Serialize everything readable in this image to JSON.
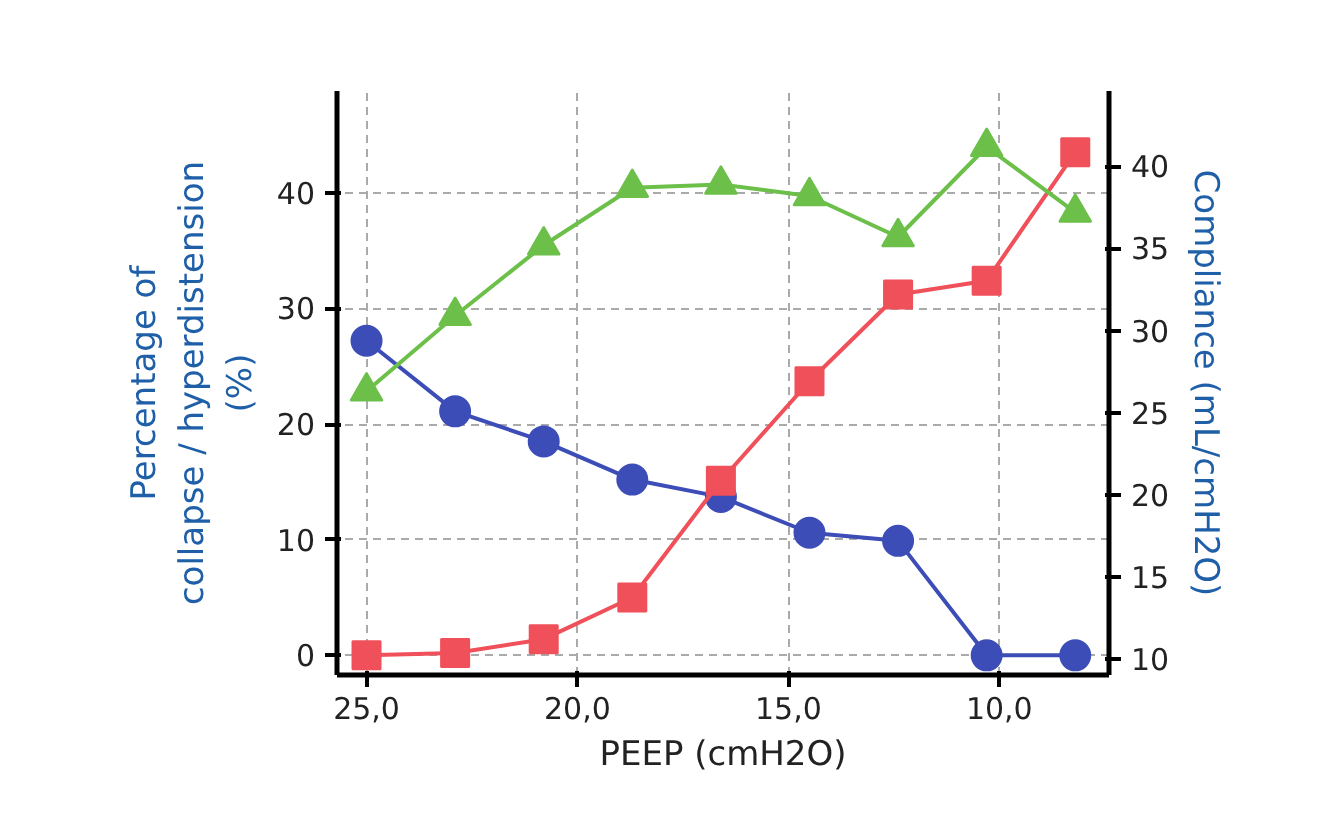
{
  "chart_data": {
    "type": "line",
    "xlabel": "PEEP (cmH2O)",
    "ylabel": "Percentage of\ncollapse / hyperdistension\n(%)",
    "y2label": "Compliance (mL/cmH2O)",
    "x": [
      25.0,
      22.9,
      20.8,
      18.7,
      16.6,
      14.5,
      12.4,
      10.3,
      8.2
    ],
    "xlim": [
      25.7,
      7.4
    ],
    "xticks": [
      {
        "value": 25,
        "label": "25,0"
      },
      {
        "value": 20,
        "label": "20,0"
      },
      {
        "value": 15,
        "label": "15,0"
      },
      {
        "value": 10,
        "label": "10,0"
      }
    ],
    "ylim": [
      -1.7,
      48.8
    ],
    "yticks": [
      0,
      10,
      20,
      30,
      40
    ],
    "y2lim": [
      9.0,
      44.6
    ],
    "y2ticks": [
      10,
      15,
      20,
      25,
      30,
      35,
      40
    ],
    "grid": true,
    "line_style": "solid",
    "series": [
      {
        "color": "#3d4db7",
        "marker": "circle",
        "values": [
          27.2,
          21.1,
          18.5,
          15.2,
          13.7,
          10.6,
          9.9,
          0,
          0
        ]
      },
      {
        "color": "#f0505a",
        "marker": "square",
        "values": [
          0,
          0.2,
          1.4,
          5.0,
          15.1,
          23.7,
          31.2,
          32.4,
          43.5
        ]
      },
      {
        "color": "#6cc04a",
        "marker": "triangle",
        "axis": "y2",
        "values": [
          26.3,
          30.9,
          35.2,
          38.7,
          38.9,
          38.2,
          35.7,
          41.2,
          37.2
        ]
      }
    ]
  }
}
